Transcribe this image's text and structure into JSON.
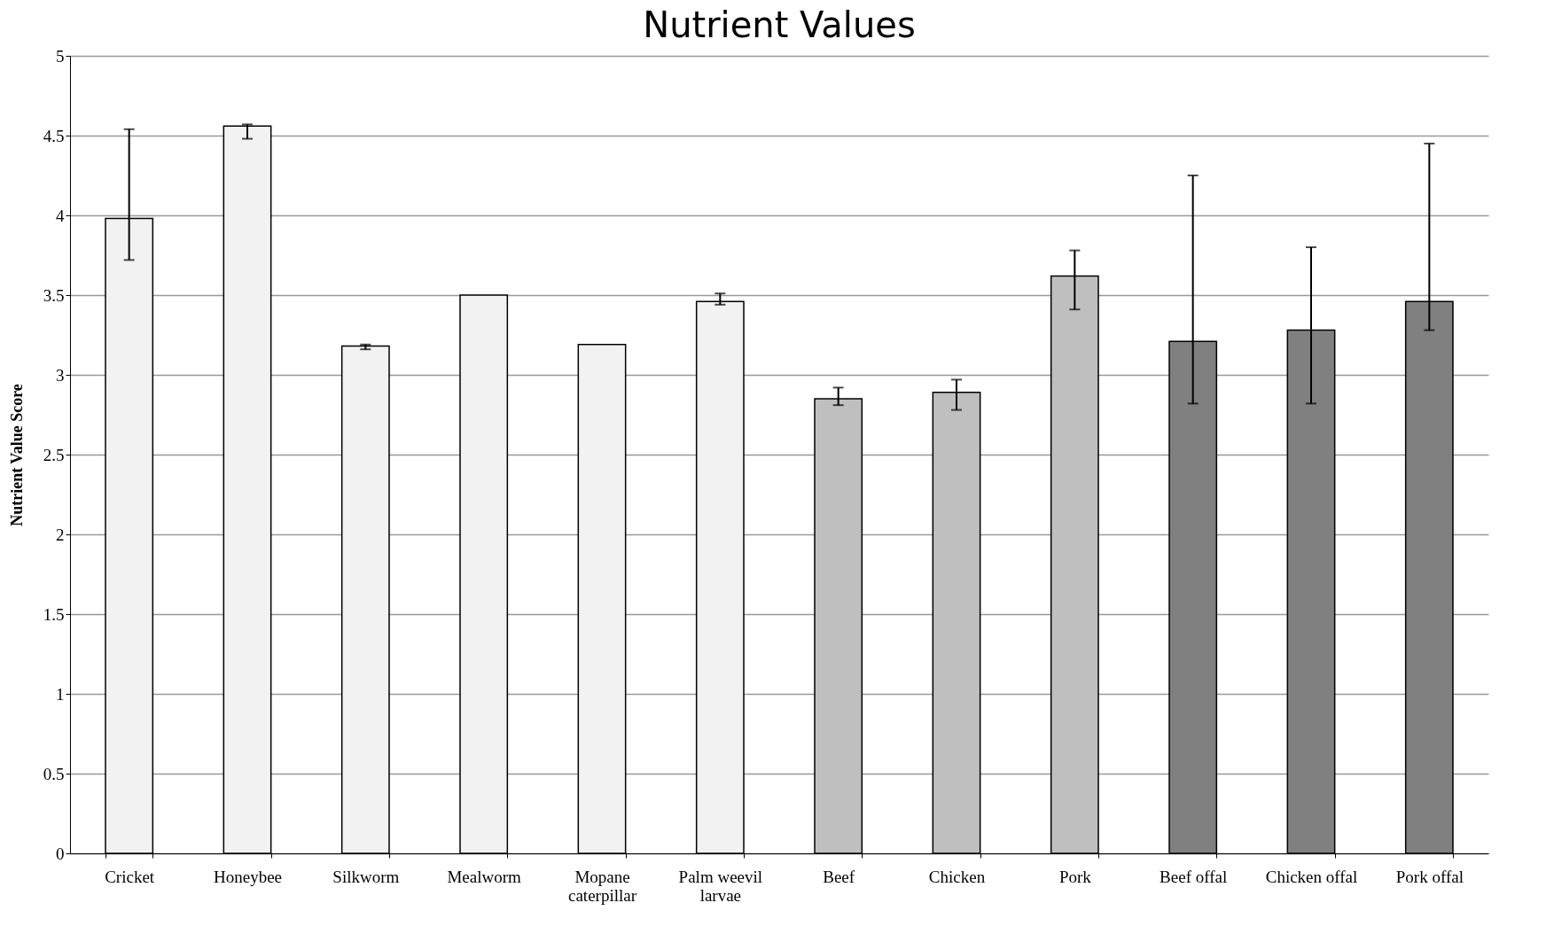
{
  "chart_data": {
    "type": "bar",
    "title": "Nutrient Values",
    "ylabel": "Nutrient Value Score",
    "categories": [
      "Cricket",
      "Honeybee",
      "Silkworm",
      "Mealworm",
      "Mopane caterpillar",
      "Palm weevil larvae",
      "Beef",
      "Chicken",
      "Pork",
      "Beef offal",
      "Chicken offal",
      "Pork offal"
    ],
    "values": [
      3.98,
      4.56,
      3.18,
      3.5,
      3.19,
      3.46,
      2.85,
      2.89,
      3.62,
      3.21,
      3.28,
      3.46
    ],
    "errors": [
      [
        3.72,
        4.54
      ],
      [
        4.48,
        4.57
      ],
      [
        3.16,
        3.19
      ],
      null,
      null,
      [
        3.44,
        3.51
      ],
      [
        2.81,
        2.92
      ],
      [
        2.78,
        2.97
      ],
      [
        3.41,
        3.78
      ],
      [
        2.82,
        4.25
      ],
      [
        2.82,
        3.8
      ],
      [
        3.28,
        4.45
      ]
    ],
    "colors": [
      "#f2f2f2",
      "#f2f2f2",
      "#f2f2f2",
      "#f2f2f2",
      "#f2f2f2",
      "#f2f2f2",
      "#bfbfbf",
      "#bfbfbf",
      "#bfbfbf",
      "#808080",
      "#808080",
      "#808080"
    ],
    "ylim": [
      0,
      5
    ],
    "yticks": [
      0,
      0.5,
      1,
      1.5,
      2,
      2.5,
      3,
      3.5,
      4,
      4.5,
      5
    ],
    "grid": "y"
  }
}
